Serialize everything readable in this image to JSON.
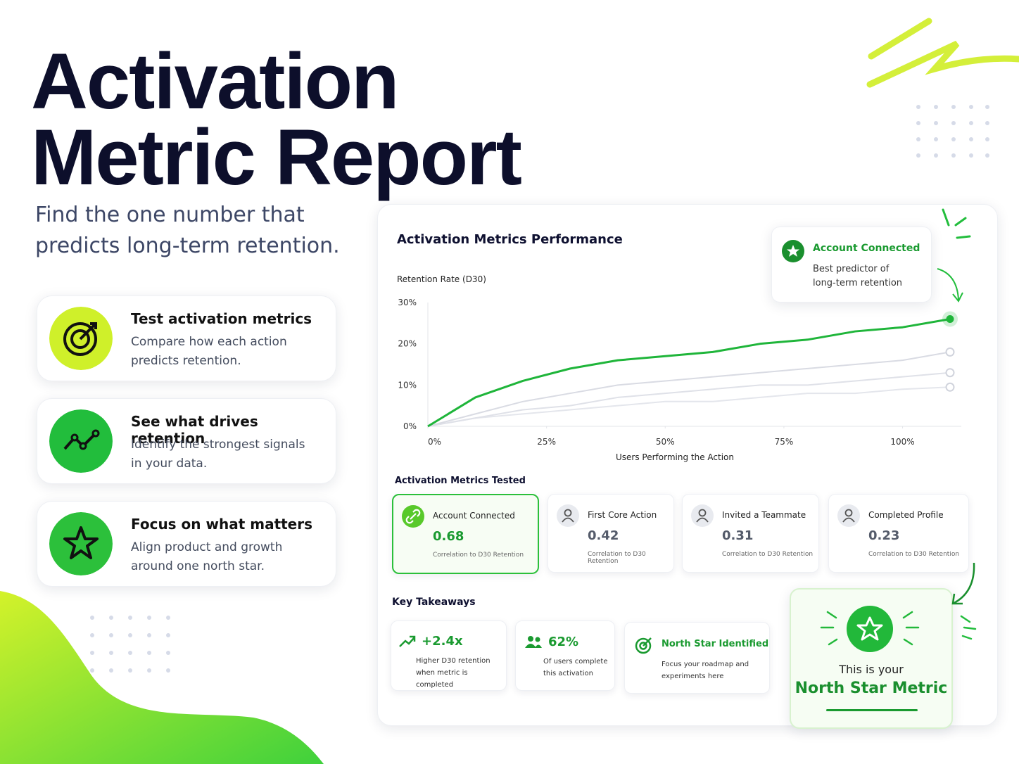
{
  "header": {
    "title_line1": "Activation",
    "title_line2": "Metric Report",
    "subtitle_line1": "Find the one number that",
    "subtitle_line2": "predicts long-term retention."
  },
  "features": [
    {
      "title": "Test activation metrics",
      "text_line1": "Compare how each action",
      "text_line2": "predicts retention."
    },
    {
      "title": "See what drives retention",
      "text_line1": "Identify the strongest signals",
      "text_line2": "in your data."
    },
    {
      "title": "Focus on what matters",
      "text_line1": "Align product and growth",
      "text_line2": "around one north star."
    }
  ],
  "dashboard": {
    "title": "Activation Metrics Performance",
    "callout_line1": "Best predictor of",
    "callout_line2": "long-term retention"
  },
  "chart_data": {
    "type": "line",
    "ylabel": "Retention Rate (D30)",
    "xlabel": "Users Performing the Action",
    "x": [
      0,
      10,
      20,
      30,
      40,
      50,
      60,
      70,
      80,
      90,
      100,
      110
    ],
    "series": [
      {
        "name": "Account Connected",
        "color": "#1fb53a",
        "values": [
          0,
          7,
          11,
          14,
          16,
          17,
          18,
          20,
          21,
          23,
          24,
          26
        ]
      },
      {
        "name": "First Core Action",
        "color": "#d9dbe3",
        "values": [
          0,
          3,
          6,
          8,
          10,
          11,
          12,
          13,
          14,
          15,
          16,
          18
        ]
      },
      {
        "name": "Invited a Teammate",
        "color": "#dfe1e8",
        "values": [
          0,
          2,
          4,
          5,
          7,
          8,
          9,
          10,
          10,
          11,
          12,
          13
        ]
      },
      {
        "name": "Completed Profile",
        "color": "#e4e6ec",
        "values": [
          0,
          2,
          3,
          4,
          5,
          6,
          6,
          7,
          8,
          8,
          9,
          9.5
        ]
      }
    ],
    "xlim": [
      0,
      110
    ],
    "ylim": [
      0,
      30
    ],
    "xticks": [
      {
        "value": 0,
        "label": "0%"
      },
      {
        "value": 25,
        "label": "25%"
      },
      {
        "value": 50,
        "label": "50%"
      },
      {
        "value": 75,
        "label": "75%"
      },
      {
        "value": 100,
        "label": "100%"
      }
    ],
    "yticks": [
      {
        "value": 0,
        "label": "0%"
      },
      {
        "value": 10,
        "label": "10%"
      },
      {
        "value": 20,
        "label": "20%"
      },
      {
        "value": 30,
        "label": "30%"
      }
    ]
  },
  "metrics": {
    "title": "Activation Metrics Tested",
    "caption": "Correlation to D30 Retention",
    "values": [
      0.68,
      0.42,
      0.31,
      0.23
    ]
  },
  "takeaways": {
    "title": "Key Takeaways",
    "items": [
      {
        "title": "+2.4x",
        "text_line1": "Higher D30 retention",
        "text_line2": "when metric is completed"
      },
      {
        "title": "62%",
        "text_line1": "Of users complete",
        "text_line2": "this activation"
      },
      {
        "title": "North Star Identified",
        "text_line1": "Focus your roadmap and",
        "text_line2": "experiments here"
      }
    ]
  },
  "north_star": {
    "line1": "This is your",
    "line2": "North Star Metric"
  }
}
